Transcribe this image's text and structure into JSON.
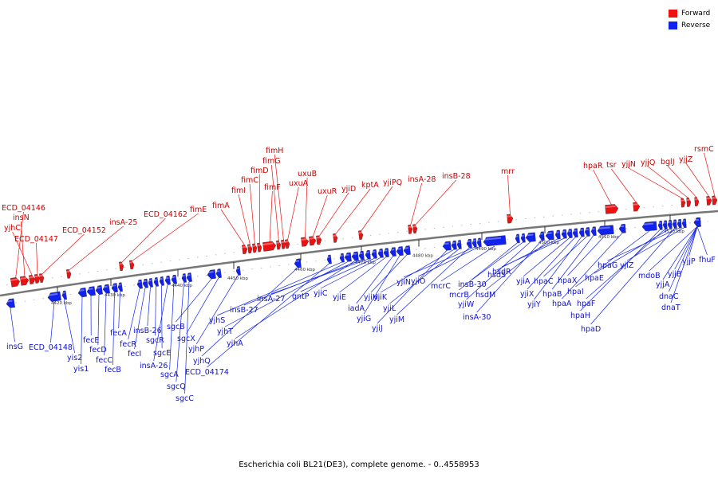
{
  "legend": {
    "forward_label": "Forward",
    "reverse_label": "Reverse",
    "forward_color": "#ee1111",
    "reverse_color": "#1122ee"
  },
  "caption": "Escherichia coli BL21(DE3), complete genome. - 0..4558953",
  "ticks": [
    "4420 kbp",
    "4430 kbp",
    "4440 kbp",
    "4450 kbp",
    "4460 kbp",
    "4470 kbp",
    "4480 kbp",
    "4490 kbp",
    "4500 kbp",
    "4510 kbp",
    "4520 kbp"
  ],
  "forward_genes": [
    "ECD_04146",
    "insN",
    "yjhC",
    "ECD_04147",
    "ECD_04152",
    "insA-25",
    "ECD_04162",
    "fimE",
    "fimA",
    "fimI",
    "fimC",
    "fimD",
    "fimF",
    "fimG",
    "fimH",
    "uxuA",
    "uxuB",
    "uxuR",
    "yjiD",
    "kptA",
    "yjiPQ",
    "insA-28",
    "insB-28",
    "mrr",
    "hpaR",
    "tsr",
    "yjjN",
    "yjjQ",
    "bglJ",
    "yjjZ",
    "rsmC"
  ],
  "reverse_genes": [
    "insG",
    "ECD_04148",
    "yis2",
    "yis1",
    "fecE",
    "fecD",
    "fecC",
    "fecB",
    "fecA",
    "fecR",
    "fecI",
    "insB-26",
    "sgcR",
    "sgcE",
    "insA-26",
    "sgcA",
    "sgcQ",
    "sgcC",
    "sgcB",
    "sgcX",
    "yjhP",
    "yjhQ",
    "ECD_04174",
    "yjhS",
    "yjhT",
    "yjhA",
    "insB-27",
    "insA-27",
    "gntP",
    "yjiC",
    "yjiE",
    "iadA",
    "yjiG",
    "yjiH",
    "yjiJ",
    "yjiK",
    "yjiL",
    "yjiM",
    "yjiN",
    "yjiO",
    "mcrC",
    "mcrB",
    "insB-30",
    "yjiW",
    "insA-30",
    "hsdM",
    "hsdS",
    "hsdR",
    "yjiA",
    "yjiX",
    "yjiY",
    "hpaC",
    "hpaB",
    "hpaX",
    "hpaA",
    "hpaI",
    "hpaH",
    "hpaF",
    "hpaE",
    "hpaD",
    "hpaG",
    "yjiZ",
    "mdoB",
    "yjjA",
    "dnaC",
    "dnaT",
    "yjjB",
    "yjjP",
    "fhuF"
  ]
}
